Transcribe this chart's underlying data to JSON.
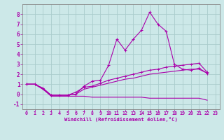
{
  "xlabel": "Windchill (Refroidissement éolien,°C)",
  "bg_color": "#cce8e8",
  "grid_color": "#aacccc",
  "line_color": "#aa00aa",
  "x": [
    0,
    1,
    2,
    3,
    4,
    5,
    6,
    7,
    8,
    9,
    10,
    11,
    12,
    13,
    14,
    15,
    16,
    17,
    18,
    19,
    20,
    21,
    22,
    23
  ],
  "line1": [
    1.0,
    1.0,
    0.6,
    -0.1,
    -0.1,
    -0.1,
    0.0,
    0.8,
    1.3,
    1.4,
    2.9,
    5.5,
    4.4,
    5.5,
    6.4,
    8.2,
    7.0,
    6.3,
    3.0,
    2.5,
    2.4,
    2.6,
    2.1,
    null
  ],
  "line2": [
    1.0,
    1.0,
    0.6,
    -0.1,
    -0.1,
    -0.1,
    0.2,
    0.7,
    0.8,
    1.1,
    1.4,
    1.6,
    1.8,
    2.0,
    2.2,
    2.4,
    2.5,
    2.7,
    2.8,
    2.9,
    3.0,
    3.1,
    2.2,
    null
  ],
  "line3": [
    1.0,
    1.0,
    0.5,
    -0.1,
    -0.1,
    -0.1,
    0.0,
    0.5,
    0.7,
    0.9,
    1.1,
    1.3,
    1.5,
    1.6,
    1.8,
    2.0,
    2.1,
    2.2,
    2.3,
    2.4,
    2.5,
    2.5,
    2.1,
    null
  ],
  "line4": [
    1.0,
    1.0,
    0.5,
    -0.2,
    -0.2,
    -0.2,
    -0.2,
    -0.2,
    -0.3,
    -0.3,
    -0.3,
    -0.3,
    -0.3,
    -0.3,
    -0.3,
    -0.4,
    -0.4,
    -0.4,
    -0.4,
    -0.4,
    -0.4,
    -0.4,
    -0.6,
    null
  ],
  "ylim": [
    -1.5,
    9.0
  ],
  "xlim": [
    -0.5,
    23.5
  ],
  "yticks": [
    -1,
    0,
    1,
    2,
    3,
    4,
    5,
    6,
    7,
    8
  ],
  "xticks": [
    0,
    1,
    2,
    3,
    4,
    5,
    6,
    7,
    8,
    9,
    10,
    11,
    12,
    13,
    14,
    15,
    16,
    17,
    18,
    19,
    20,
    21,
    22,
    23
  ]
}
